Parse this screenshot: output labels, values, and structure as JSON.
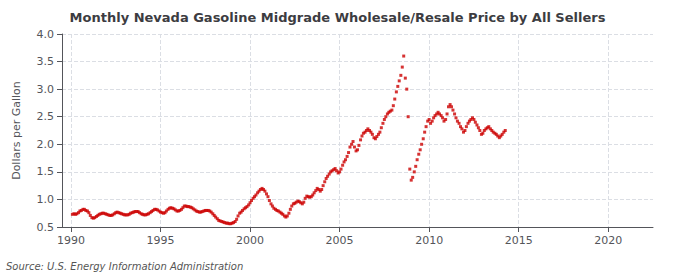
{
  "chart_data": {
    "type": "scatter",
    "title": "Monthly Nevada Gasoline Midgrade Wholesale/Resale Price by All Sellers",
    "ylabel": "Dollars per Gallon",
    "annotation": "Source: U.S. Energy Information Administration",
    "color": "#cc0000",
    "marker": "square",
    "grid": true,
    "xlim": [
      1989.5,
      2022.5
    ],
    "ylim": [
      0.5,
      4.0
    ],
    "xticks": [
      1990,
      1995,
      2000,
      2005,
      2010,
      2015,
      2020
    ],
    "yticks": [
      0.5,
      {
        "value": 1.0,
        "label": "1.0"
      },
      1.5,
      {
        "value": 2.0,
        "label": "2.0"
      },
      2.5,
      {
        "value": 3.0,
        "label": "3.0"
      },
      3.5,
      {
        "value": 4.0,
        "label": "4.0"
      }
    ],
    "x": [
      1990.08,
      1990.17,
      1990.25,
      1990.33,
      1990.42,
      1990.5,
      1990.58,
      1990.67,
      1990.75,
      1990.83,
      1990.92,
      1991.0,
      1991.08,
      1991.17,
      1991.25,
      1991.33,
      1991.42,
      1991.5,
      1991.58,
      1991.67,
      1991.75,
      1991.83,
      1991.92,
      1992.0,
      1992.08,
      1992.17,
      1992.25,
      1992.33,
      1992.42,
      1992.5,
      1992.58,
      1992.67,
      1992.75,
      1992.83,
      1992.92,
      1993.0,
      1993.08,
      1993.17,
      1993.25,
      1993.33,
      1993.42,
      1993.5,
      1993.58,
      1993.67,
      1993.75,
      1993.83,
      1993.92,
      1994.0,
      1994.08,
      1994.17,
      1994.25,
      1994.33,
      1994.42,
      1994.5,
      1994.58,
      1994.67,
      1994.75,
      1994.83,
      1994.92,
      1995.0,
      1995.08,
      1995.17,
      1995.25,
      1995.33,
      1995.42,
      1995.5,
      1995.58,
      1995.67,
      1995.75,
      1995.83,
      1995.92,
      1996.0,
      1996.08,
      1996.17,
      1996.25,
      1996.33,
      1996.42,
      1996.5,
      1996.58,
      1996.67,
      1996.75,
      1996.83,
      1996.92,
      1997.0,
      1997.08,
      1997.17,
      1997.25,
      1997.33,
      1997.42,
      1997.5,
      1997.58,
      1997.67,
      1997.75,
      1997.83,
      1997.92,
      1998.0,
      1998.08,
      1998.17,
      1998.25,
      1998.33,
      1998.42,
      1998.5,
      1998.58,
      1998.67,
      1998.75,
      1998.83,
      1998.92,
      1999.0,
      1999.08,
      1999.17,
      1999.25,
      1999.33,
      1999.42,
      1999.5,
      1999.58,
      1999.67,
      1999.75,
      1999.83,
      1999.92,
      2000.0,
      2000.08,
      2000.17,
      2000.25,
      2000.33,
      2000.42,
      2000.5,
      2000.58,
      2000.67,
      2000.75,
      2000.83,
      2000.92,
      2001.0,
      2001.08,
      2001.17,
      2001.25,
      2001.33,
      2001.42,
      2001.5,
      2001.58,
      2001.67,
      2001.75,
      2001.83,
      2001.92,
      2002.0,
      2002.08,
      2002.17,
      2002.25,
      2002.33,
      2002.42,
      2002.5,
      2002.58,
      2002.67,
      2002.75,
      2002.83,
      2002.92,
      2003.0,
      2003.08,
      2003.17,
      2003.25,
      2003.33,
      2003.42,
      2003.5,
      2003.58,
      2003.67,
      2003.75,
      2003.83,
      2003.92,
      2004.0,
      2004.08,
      2004.17,
      2004.25,
      2004.33,
      2004.42,
      2004.5,
      2004.58,
      2004.67,
      2004.75,
      2004.83,
      2004.92,
      2005.0,
      2005.08,
      2005.17,
      2005.25,
      2005.33,
      2005.42,
      2005.5,
      2005.58,
      2005.67,
      2005.75,
      2005.83,
      2005.92,
      2006.0,
      2006.08,
      2006.17,
      2006.25,
      2006.33,
      2006.42,
      2006.5,
      2006.58,
      2006.67,
      2006.75,
      2006.83,
      2006.92,
      2007.0,
      2007.08,
      2007.17,
      2007.25,
      2007.33,
      2007.42,
      2007.5,
      2007.58,
      2007.67,
      2007.75,
      2007.83,
      2007.92,
      2008.0,
      2008.08,
      2008.17,
      2008.25,
      2008.33,
      2008.42,
      2008.5,
      2008.58,
      2008.67,
      2008.75,
      2008.83,
      2008.92,
      2009.0,
      2009.08,
      2009.17,
      2009.25,
      2009.33,
      2009.42,
      2009.5,
      2009.58,
      2009.67,
      2009.75,
      2009.83,
      2009.92,
      2010.0,
      2010.08,
      2010.17,
      2010.25,
      2010.33,
      2010.42,
      2010.5,
      2010.58,
      2010.67,
      2010.75,
      2010.83,
      2010.92,
      2011.0,
      2011.08,
      2011.17,
      2011.25,
      2011.33,
      2011.42,
      2011.5,
      2011.58,
      2011.67,
      2011.75,
      2011.83,
      2011.92,
      2012.0,
      2012.08,
      2012.17,
      2012.25,
      2012.33,
      2012.42,
      2012.5,
      2012.58,
      2012.67,
      2012.75,
      2012.83,
      2012.92,
      2013.0,
      2013.08,
      2013.17,
      2013.25,
      2013.33,
      2013.42,
      2013.5,
      2013.58,
      2013.67,
      2013.75,
      2013.83,
      2013.92,
      2014.0,
      2014.08,
      2014.17,
      2014.25
    ],
    "values": [
      0.73,
      0.74,
      0.73,
      0.74,
      0.76,
      0.79,
      0.8,
      0.82,
      0.82,
      0.8,
      0.79,
      0.76,
      0.71,
      0.67,
      0.66,
      0.67,
      0.69,
      0.71,
      0.73,
      0.74,
      0.75,
      0.75,
      0.74,
      0.73,
      0.72,
      0.71,
      0.71,
      0.72,
      0.74,
      0.76,
      0.77,
      0.76,
      0.75,
      0.74,
      0.73,
      0.72,
      0.72,
      0.72,
      0.73,
      0.75,
      0.76,
      0.77,
      0.78,
      0.78,
      0.78,
      0.76,
      0.74,
      0.73,
      0.72,
      0.72,
      0.73,
      0.74,
      0.76,
      0.78,
      0.8,
      0.82,
      0.82,
      0.81,
      0.79,
      0.77,
      0.76,
      0.75,
      0.76,
      0.79,
      0.82,
      0.84,
      0.85,
      0.84,
      0.83,
      0.81,
      0.79,
      0.79,
      0.8,
      0.82,
      0.85,
      0.88,
      0.88,
      0.87,
      0.87,
      0.86,
      0.85,
      0.83,
      0.81,
      0.79,
      0.78,
      0.77,
      0.77,
      0.78,
      0.79,
      0.8,
      0.8,
      0.8,
      0.79,
      0.77,
      0.74,
      0.71,
      0.68,
      0.65,
      0.62,
      0.61,
      0.6,
      0.59,
      0.58,
      0.57,
      0.57,
      0.56,
      0.56,
      0.57,
      0.58,
      0.6,
      0.64,
      0.7,
      0.75,
      0.77,
      0.8,
      0.83,
      0.85,
      0.87,
      0.9,
      0.94,
      0.98,
      1.02,
      1.05,
      1.08,
      1.12,
      1.15,
      1.18,
      1.2,
      1.18,
      1.15,
      1.1,
      1.05,
      0.98,
      0.92,
      0.88,
      0.84,
      0.82,
      0.8,
      0.79,
      0.77,
      0.75,
      0.73,
      0.7,
      0.68,
      0.7,
      0.75,
      0.82,
      0.88,
      0.92,
      0.93,
      0.95,
      0.97,
      0.96,
      0.94,
      0.92,
      0.95,
      1.02,
      1.06,
      1.05,
      1.04,
      1.05,
      1.08,
      1.12,
      1.16,
      1.2,
      1.18,
      1.15,
      1.18,
      1.25,
      1.32,
      1.38,
      1.42,
      1.46,
      1.5,
      1.52,
      1.54,
      1.56,
      1.52,
      1.48,
      1.5,
      1.55,
      1.62,
      1.68,
      1.72,
      1.78,
      1.85,
      1.95,
      2.0,
      2.05,
      1.95,
      1.88,
      1.9,
      1.98,
      2.08,
      2.15,
      2.2,
      2.22,
      2.25,
      2.28,
      2.25,
      2.22,
      2.18,
      2.12,
      2.1,
      2.14,
      2.18,
      2.22,
      2.3,
      2.38,
      2.45,
      2.5,
      2.55,
      2.58,
      2.6,
      2.62,
      2.7,
      2.82,
      2.95,
      3.05,
      3.15,
      3.25,
      3.4,
      3.6,
      3.2,
      3.0,
      2.5,
      1.55,
      1.35,
      1.4,
      1.5,
      1.6,
      1.72,
      1.82,
      1.9,
      2.0,
      2.1,
      2.22,
      2.32,
      2.42,
      2.45,
      2.38,
      2.42,
      2.48,
      2.52,
      2.55,
      2.58,
      2.55,
      2.52,
      2.48,
      2.42,
      2.45,
      2.55,
      2.68,
      2.72,
      2.68,
      2.62,
      2.55,
      2.48,
      2.42,
      2.38,
      2.32,
      2.28,
      2.22,
      2.25,
      2.32,
      2.38,
      2.42,
      2.45,
      2.48,
      2.45,
      2.4,
      2.35,
      2.3,
      2.25,
      2.18,
      2.2,
      2.25,
      2.28,
      2.3,
      2.32,
      2.28,
      2.25,
      2.22,
      2.2,
      2.18,
      2.15,
      2.12,
      2.15,
      2.18,
      2.22,
      2.25
    ]
  }
}
